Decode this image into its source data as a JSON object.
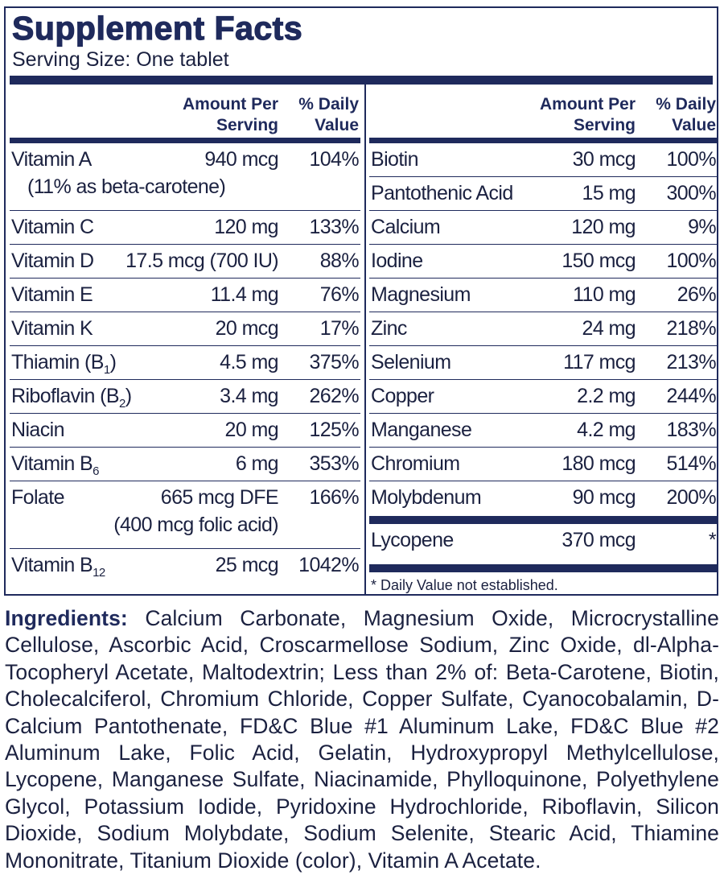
{
  "title": "Supplement Facts",
  "serving_size": "Serving Size: One tablet",
  "headers": {
    "amount_line1": "Amount Per",
    "amount_line2": "Serving",
    "dv_line1": "% Daily",
    "dv_line2": "Value"
  },
  "left_rows": [
    {
      "name": "Vitamin A",
      "amount": "940 mcg",
      "dv": "104%",
      "note": "(11% as beta-carotene)"
    },
    {
      "name": "Vitamin C",
      "amount": "120 mg",
      "dv": "133%"
    },
    {
      "name": "Vitamin D",
      "amount": "17.5 mcg (700 IU)",
      "dv": "88%"
    },
    {
      "name": "Vitamin E",
      "amount": "11.4 mg",
      "dv": "76%"
    },
    {
      "name": "Vitamin K",
      "amount": "20 mcg",
      "dv": "17%"
    },
    {
      "name": "Thiamin (B",
      "sub": "1",
      "suffix": ")",
      "amount": "4.5 mg",
      "dv": "375%"
    },
    {
      "name": "Riboflavin (B",
      "sub": "2",
      "suffix": ")",
      "amount": "3.4 mg",
      "dv": "262%"
    },
    {
      "name": "Niacin",
      "amount": "20 mg",
      "dv": "125%"
    },
    {
      "name": "Vitamin B",
      "sub": "6",
      "amount": "6 mg",
      "dv": "353%"
    },
    {
      "name": "Folate",
      "amount": "665 mcg DFE",
      "dv": "166%",
      "note": "(400 mcg folic acid)"
    },
    {
      "name": "Vitamin B",
      "sub": "12",
      "amount": "25 mcg",
      "dv": "1042%"
    }
  ],
  "right_rows": [
    {
      "name": "Biotin",
      "amount": "30 mcg",
      "dv": "100%"
    },
    {
      "name": "Pantothenic Acid",
      "amount": "15 mg",
      "dv": "300%"
    },
    {
      "name": "Calcium",
      "amount": "120 mg",
      "dv": "9%"
    },
    {
      "name": "Iodine",
      "amount": "150 mcg",
      "dv": "100%"
    },
    {
      "name": "Magnesium",
      "amount": "110 mg",
      "dv": "26%"
    },
    {
      "name": "Zinc",
      "amount": "24 mg",
      "dv": "218%"
    },
    {
      "name": "Selenium",
      "amount": "117 mcg",
      "dv": "213%"
    },
    {
      "name": "Copper",
      "amount": "2.2 mg",
      "dv": "244%"
    },
    {
      "name": "Manganese",
      "amount": "4.2 mg",
      "dv": "183%"
    },
    {
      "name": "Chromium",
      "amount": "180 mcg",
      "dv": "514%"
    },
    {
      "name": "Molybdenum",
      "amount": "90 mcg",
      "dv": "200%"
    }
  ],
  "extra_row": {
    "name": "Lycopene",
    "amount": "370 mcg",
    "dv": "*"
  },
  "footnote": "* Daily Value not established.",
  "ingredients": {
    "label": "Ingredients:",
    "text": " Calcium Carbonate, Magnesium Oxide, Microcrystalline Cellulose, Ascorbic Acid, Croscarmellose Sodium, Zinc Oxide, dl-Alpha-Tocopheryl Acetate, Maltodextrin; Less than 2% of: Beta-Carotene, Biotin, Cholecalciferol, Chromium Chloride, Copper Sulfate, Cyanocobalamin, D-Calcium Pantothenate, FD&C Blue #1 Aluminum Lake, FD&C Blue #2 Aluminum Lake, Folic Acid, Gelatin, Hydroxypropyl Methylcellulose, Lycopene, Manganese Sulfate, Niacinamide, Phylloquinone, Polyethylene Glycol, Potassium Iodide, Pyridoxine Hydrochloride, Riboflavin, Silicon Dioxide, Sodium Molybdate, Sodium Selenite, Stearic Acid, Thiamine Mononitrate, Titanium Dioxide (color), Vitamin A Acetate."
  },
  "colors": {
    "navy": "#1f2a5c",
    "text": "#1b2140"
  }
}
